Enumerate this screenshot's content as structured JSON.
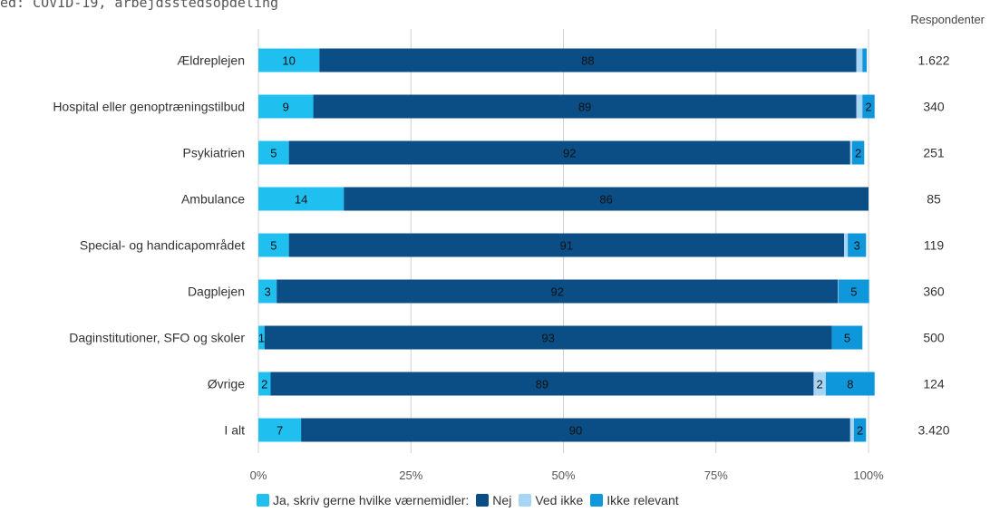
{
  "header": {
    "title": "ed: COVID-19, arbejdsstedsopdeling",
    "respondents_label": "Respondenter"
  },
  "chart_data": {
    "type": "bar",
    "orientation": "horizontal",
    "stacked": true,
    "percent": true,
    "categories": [
      "Ældreplejen",
      "Hospital eller genoptræningstilbud",
      "Psykiatrien",
      "Ambulance",
      "Special- og handicapområdet",
      "Dagplejen",
      "Daginstitutioner, SFO og skoler",
      "Øvrige",
      "I alt"
    ],
    "series": [
      {
        "name": "Ja, skriv gerne hvilke værnemidler:",
        "color": "#1fc0f0",
        "values": [
          10,
          9,
          5,
          14,
          5,
          3,
          1,
          2,
          7
        ]
      },
      {
        "name": "Nej",
        "color": "#0a4e85",
        "values": [
          88,
          89,
          92,
          86,
          91,
          92,
          93,
          89,
          90
        ]
      },
      {
        "name": "Ved ikke",
        "color": "#a9d5f5",
        "values": [
          1,
          1,
          0.3,
          0,
          0.6,
          0.1,
          0,
          2,
          0.6
        ]
      },
      {
        "name": "Ikke relevant",
        "color": "#0f97dc",
        "values": [
          0.7,
          2,
          2,
          0,
          3,
          5,
          5,
          8,
          2
        ]
      }
    ],
    "data_labels": [
      [
        "10",
        "88",
        "",
        ""
      ],
      [
        "9",
        "89",
        "",
        "2"
      ],
      [
        "5",
        "92",
        "",
        "2"
      ],
      [
        "14",
        "86",
        "",
        ""
      ],
      [
        "5",
        "91",
        "",
        "3"
      ],
      [
        "3",
        "92",
        "",
        "5"
      ],
      [
        "1",
        "93",
        "",
        "5"
      ],
      [
        "2",
        "89",
        "2",
        "8"
      ],
      [
        "7",
        "90",
        "",
        "2"
      ]
    ],
    "respondents": [
      "1.622",
      "340",
      "251",
      "85",
      "119",
      "360",
      "500",
      "124",
      "3.420"
    ],
    "x_ticks": [
      "0%",
      "25%",
      "50%",
      "75%",
      "100%"
    ],
    "xlim": [
      0,
      100
    ],
    "grid": true,
    "legend_position": "bottom"
  }
}
